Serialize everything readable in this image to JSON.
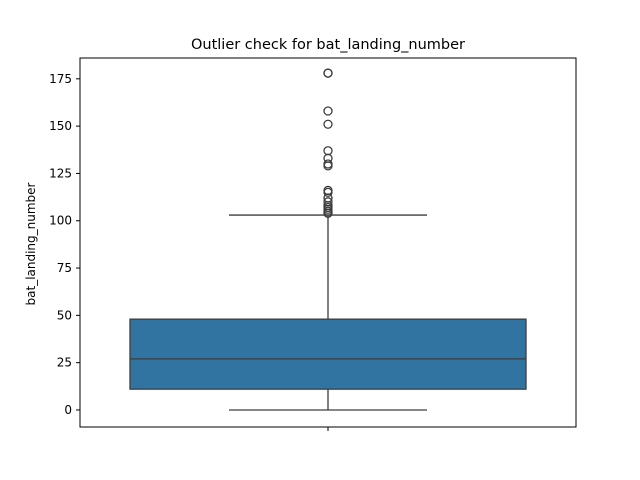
{
  "chart_data": {
    "type": "box",
    "title": "Outlier check for bat_landing_number",
    "xlabel": "",
    "ylabel": "bat_landing_number",
    "ylim": [
      -9,
      186
    ],
    "yticks": [
      0,
      25,
      50,
      75,
      100,
      125,
      150,
      175
    ],
    "ytick_labels": [
      "0",
      "25",
      "50",
      "75",
      "100",
      "125",
      "150",
      "175"
    ],
    "grid": false,
    "box": {
      "min_whisker": 0,
      "q1": 11,
      "median": 27,
      "q3": 48,
      "max_whisker": 103,
      "fill_color": "#3274a1",
      "line_color": "#3d3d3d",
      "outliers": [
        104,
        104,
        105,
        106,
        107,
        108,
        110,
        112,
        115,
        116,
        129,
        130,
        133,
        137,
        151,
        158,
        178,
        178
      ]
    }
  }
}
